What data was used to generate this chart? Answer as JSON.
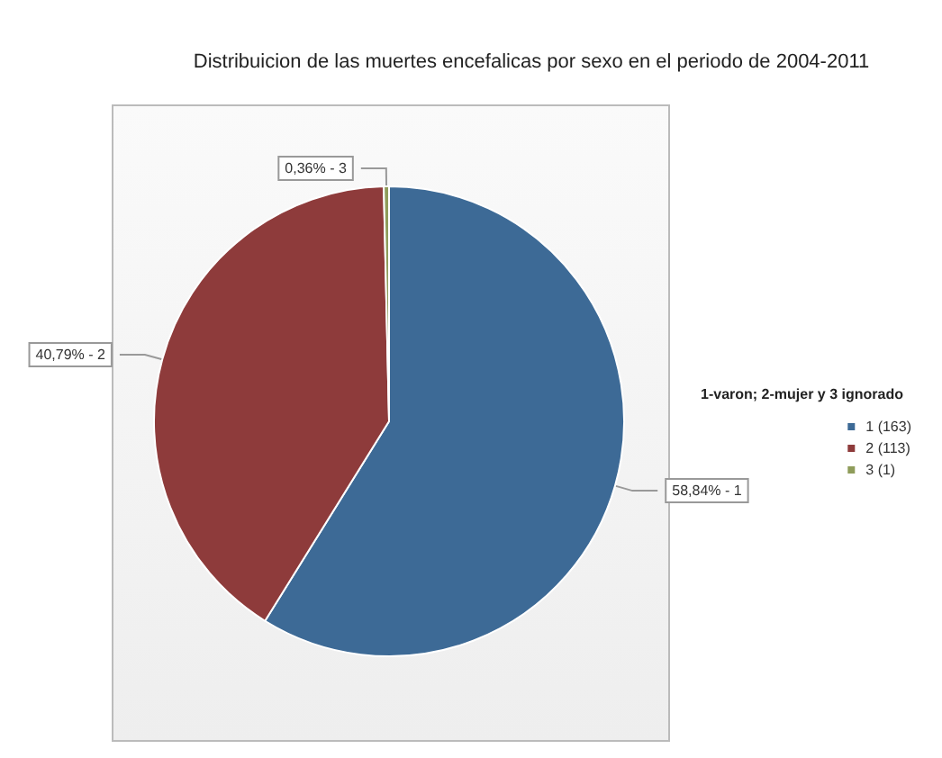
{
  "chart_data": {
    "type": "pie",
    "title": "Distribuicion de las muertes encefalicas por sexo en el periodo de 2004-2011",
    "legend_title": "1-varon; 2-mujer y 3 ignorado",
    "categories": [
      "1 (163)",
      "2 (113)",
      "3 (1)"
    ],
    "values": [
      58.84,
      40.79,
      0.36
    ],
    "value_labels": [
      "58,84% - 1",
      "40,79% - 2",
      "0,36% - 3"
    ],
    "colors": [
      "#3d6a96",
      "#8e3b3b",
      "#8f9c5a"
    ],
    "legend": "right"
  }
}
